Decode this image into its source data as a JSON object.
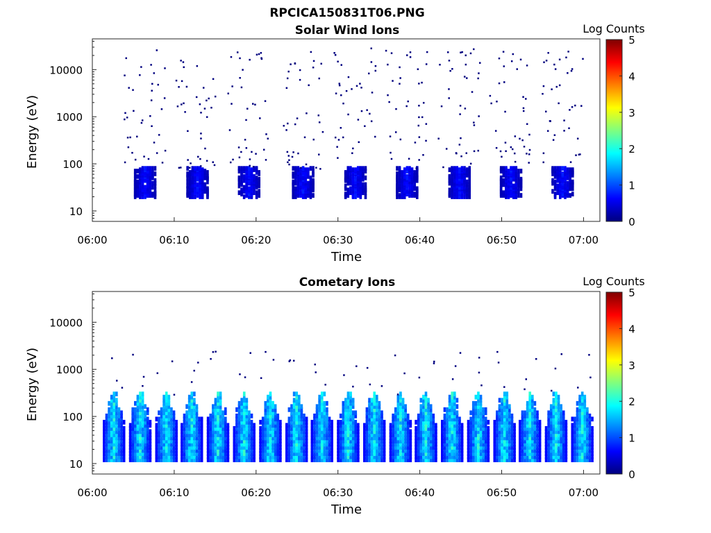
{
  "figure_title": "RPCICA150831T06.PNG",
  "colormap_colors": [
    "#00007f",
    "#0000ff",
    "#007fff",
    "#00ffff",
    "#7fff7f",
    "#ffff00",
    "#ff7f00",
    "#ff0000",
    "#7f0000"
  ],
  "chart_data": [
    {
      "type": "heatmap",
      "title": "Solar Wind Ions",
      "xlabel": "Time",
      "ylabel": "Energy (eV)",
      "yscale": "log",
      "ylim": [
        6,
        45000
      ],
      "xlim": [
        "06:00",
        "07:02"
      ],
      "x_ticks": [
        "06:00",
        "06:10",
        "06:20",
        "06:30",
        "06:40",
        "06:50",
        "07:00"
      ],
      "y_ticks": [
        "10",
        "100",
        "1000",
        "10000"
      ],
      "colorbar": {
        "label": "Log Counts",
        "range": [
          0,
          5
        ],
        "ticks": [
          "0",
          "1",
          "2",
          "3",
          "4",
          "5"
        ]
      },
      "grid": false,
      "sweep_centers_minutes": [
        6.3,
        12.7,
        19.0,
        25.6,
        32.0,
        38.3,
        44.7,
        51.0,
        57.3
      ],
      "core_energy_range_eV": [
        20,
        80
      ],
      "core_log_counts_range": [
        0.2,
        0.8
      ],
      "sparse_high_energy_max_eV": 30000
    },
    {
      "type": "heatmap",
      "title": "Cometary Ions",
      "xlabel": "Time",
      "ylabel": "Energy (eV)",
      "yscale": "log",
      "ylim": [
        6,
        45000
      ],
      "xlim": [
        "06:00",
        "07:02"
      ],
      "x_ticks": [
        "06:00",
        "06:10",
        "06:20",
        "06:30",
        "06:40",
        "06:50",
        "07:00"
      ],
      "y_ticks": [
        "10",
        "100",
        "1000",
        "10000"
      ],
      "colorbar": {
        "label": "Log Counts",
        "range": [
          0,
          5
        ],
        "ticks": [
          "0",
          "1",
          "2",
          "3",
          "4",
          "5"
        ]
      },
      "grid": false,
      "sweep_centers_minutes": [
        2.5,
        5.7,
        8.9,
        12.0,
        15.2,
        18.4,
        21.6,
        24.8,
        27.9,
        31.1,
        34.3,
        37.5,
        40.6,
        43.8,
        47.0,
        50.2,
        53.3,
        56.5,
        59.7
      ],
      "core_energy_range_eV": [
        12,
        300
      ],
      "core_log_counts_range": [
        0.5,
        2.2
      ],
      "sparse_high_energy_max_eV": 5000
    }
  ]
}
